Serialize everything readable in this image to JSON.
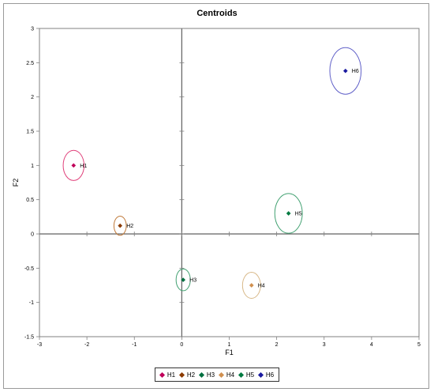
{
  "chart_data": {
    "type": "scatter",
    "title": "Centroids",
    "xlabel": "F1",
    "ylabel": "F2",
    "xlim": [
      -3,
      5
    ],
    "ylim": [
      -1.5,
      3
    ],
    "x_ticks": [
      "-3",
      "-2",
      "-1",
      "0",
      "1",
      "2",
      "3",
      "4",
      "5"
    ],
    "y_ticks": [
      "-1.5",
      "-1",
      "-0.5",
      "0",
      "0.5",
      "1",
      "1.5",
      "2",
      "2.5",
      "3"
    ],
    "grid": false,
    "legend_position": "bottom",
    "series": [
      {
        "name": "H1",
        "x": -2.28,
        "y": 1.0,
        "color": "#c0005a",
        "ellipse_color": "#e0407a",
        "rx": 0.22,
        "ry": 0.22,
        "label": "H1"
      },
      {
        "name": "H2",
        "x": -1.3,
        "y": 0.12,
        "color": "#8b3a00",
        "ellipse_color": "#c07a3a",
        "rx": 0.13,
        "ry": 0.14,
        "label": "H2"
      },
      {
        "name": "H3",
        "x": 0.03,
        "y": -0.67,
        "color": "#007040",
        "ellipse_color": "#40a070",
        "rx": 0.15,
        "ry": 0.16,
        "label": "H3"
      },
      {
        "name": "H4",
        "x": 1.47,
        "y": -0.75,
        "color": "#d09050",
        "ellipse_color": "#d8b888",
        "rx": 0.19,
        "ry": 0.19,
        "label": "H4"
      },
      {
        "name": "H5",
        "x": 2.25,
        "y": 0.3,
        "color": "#007a40",
        "ellipse_color": "#40a070",
        "rx": 0.29,
        "ry": 0.29,
        "label": "H5"
      },
      {
        "name": "H6",
        "x": 3.45,
        "y": 2.38,
        "color": "#1a1aa0",
        "ellipse_color": "#6060c8",
        "rx": 0.33,
        "ry": 0.34,
        "label": "H6"
      }
    ]
  }
}
